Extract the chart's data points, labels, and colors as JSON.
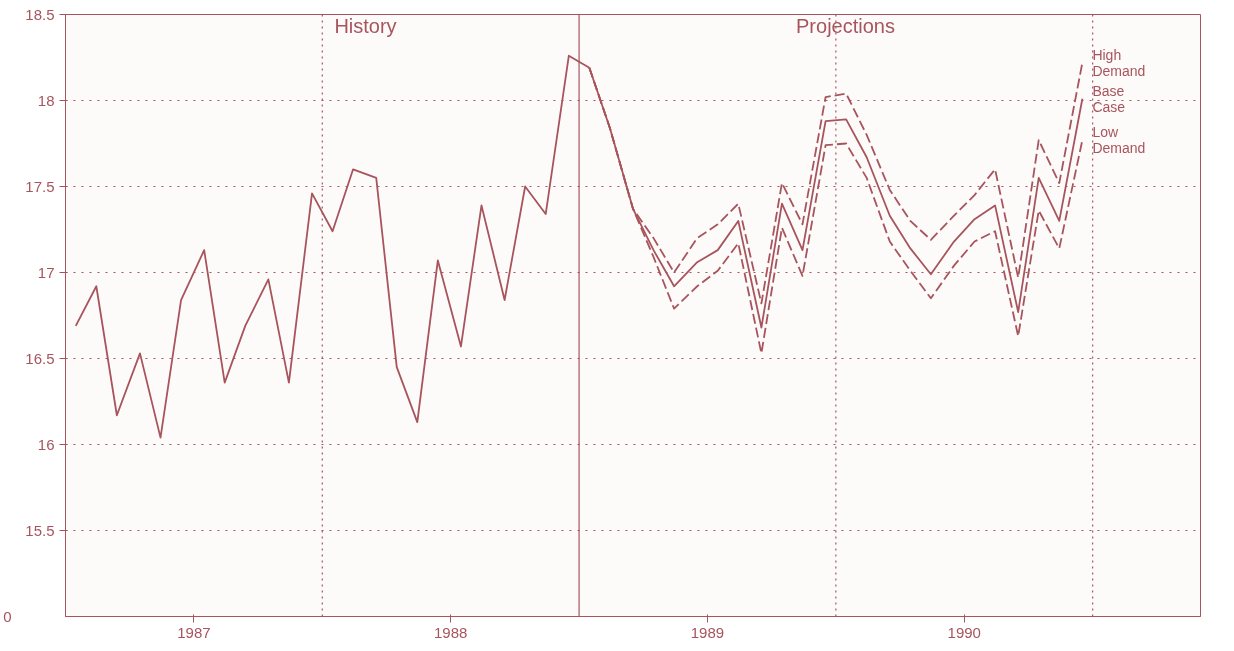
{
  "chart_data": {
    "type": "line",
    "annotations": [
      "History",
      "Projections",
      "0"
    ],
    "xlim": [
      1987.0,
      1991.42
    ],
    "ylim": [
      15.0,
      18.5
    ],
    "xticks": [
      {
        "value": 1987.5,
        "label": "1987"
      },
      {
        "value": 1988.5,
        "label": "1988"
      },
      {
        "value": 1989.5,
        "label": "1989"
      },
      {
        "value": 1990.5,
        "label": "1990"
      }
    ],
    "yticks": [
      15.5,
      16,
      16.5,
      17,
      17.5,
      18,
      18.5
    ],
    "grid": "y",
    "ref_lines": [
      {
        "axis": "x",
        "value": 1988,
        "label": null,
        "line_style": "dotted"
      },
      {
        "axis": "x",
        "value": 1989,
        "label": null,
        "line_style": "solid"
      },
      {
        "axis": "x",
        "value": 1990,
        "label": null,
        "line_style": "dotted"
      },
      {
        "axis": "x",
        "value": 1991,
        "label": null,
        "line_style": "dotted"
      }
    ],
    "series": [
      {
        "color": "#a8545c",
        "line_style": "solid",
        "x": [
          1987.04,
          1987.12,
          1987.2,
          1987.29,
          1987.37,
          1987.45,
          1987.54,
          1987.62,
          1987.7,
          1987.79,
          1987.87,
          1987.96,
          1988.04,
          1988.12,
          1988.21,
          1988.29,
          1988.37,
          1988.45,
          1988.54,
          1988.62,
          1988.71,
          1988.79,
          1988.87,
          1988.96,
          1989.04
        ],
        "values": [
          16.69,
          16.92,
          16.17,
          16.53,
          16.04,
          16.84,
          17.13,
          16.36,
          16.69,
          16.96,
          16.36,
          17.46,
          17.24,
          17.6,
          17.55,
          16.45,
          16.13,
          17.07,
          16.57,
          17.39,
          16.84,
          17.5,
          17.34,
          18.26,
          18.19
        ]
      },
      {
        "name": "High Demand",
        "color": "#a8545c",
        "line_style": "dashed",
        "x": [
          1989.04,
          1989.12,
          1989.21,
          1989.29,
          1989.37,
          1989.46,
          1989.54,
          1989.62,
          1989.71,
          1989.79,
          1989.87,
          1989.96,
          1990.04,
          1990.12,
          1990.21,
          1990.29,
          1990.37,
          1990.46,
          1990.54,
          1990.62,
          1990.71,
          1990.79,
          1990.87,
          1990.96
        ],
        "values": [
          18.19,
          17.84,
          17.37,
          17.2,
          17.0,
          17.2,
          17.28,
          17.4,
          16.82,
          17.52,
          17.28,
          18.02,
          18.04,
          17.8,
          17.48,
          17.3,
          17.19,
          17.33,
          17.45,
          17.6,
          16.97,
          17.77,
          17.52,
          18.22
        ]
      },
      {
        "name": "Base Case",
        "color": "#a8545c",
        "line_style": "solid",
        "x": [
          1989.04,
          1989.12,
          1989.21,
          1989.29,
          1989.37,
          1989.46,
          1989.54,
          1989.62,
          1989.71,
          1989.79,
          1989.87,
          1989.96,
          1990.04,
          1990.12,
          1990.21,
          1990.29,
          1990.37,
          1990.46,
          1990.54,
          1990.62,
          1990.71,
          1990.79,
          1990.87,
          1990.96
        ],
        "values": [
          18.19,
          17.84,
          17.37,
          17.13,
          16.92,
          17.06,
          17.13,
          17.3,
          16.68,
          17.4,
          17.13,
          17.88,
          17.89,
          17.67,
          17.33,
          17.14,
          16.99,
          17.18,
          17.31,
          17.39,
          16.77,
          17.55,
          17.3,
          18.01
        ]
      },
      {
        "name": "Low Demand",
        "color": "#a8545c",
        "line_style": "dashed",
        "x": [
          1989.04,
          1989.12,
          1989.21,
          1989.29,
          1989.37,
          1989.46,
          1989.54,
          1989.62,
          1989.71,
          1989.79,
          1989.87,
          1989.96,
          1990.04,
          1990.12,
          1990.21,
          1990.29,
          1990.37,
          1990.46,
          1990.54,
          1990.62,
          1990.71,
          1990.79,
          1990.87,
          1990.96
        ],
        "values": [
          18.19,
          17.84,
          17.37,
          17.09,
          16.79,
          16.92,
          17.01,
          17.17,
          16.53,
          17.26,
          16.98,
          17.74,
          17.75,
          17.55,
          17.18,
          17.01,
          16.85,
          17.04,
          17.18,
          17.24,
          16.63,
          17.36,
          17.14,
          17.77
        ]
      }
    ]
  }
}
